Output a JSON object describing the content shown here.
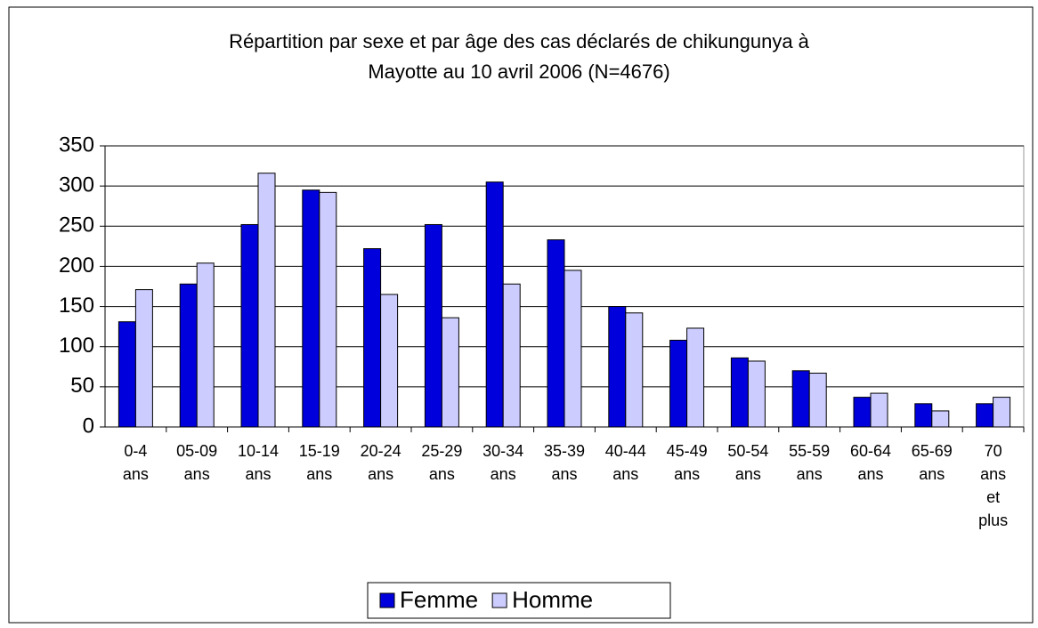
{
  "chart_data": {
    "type": "bar",
    "title": "Répartition par sexe et par âge des cas déclarés de chikungunya à Mayotte au 10 avril 2006 (N=4676)",
    "categories": [
      "0-4 ans",
      "05-09 ans",
      "10-14 ans",
      "15-19 ans",
      "20-24 ans",
      "25-29 ans",
      "30-34 ans",
      "35-39 ans",
      "40-44 ans",
      "45-49 ans",
      "50-54 ans",
      "55-59 ans",
      "60-64 ans",
      "65-69 ans",
      "70 ans et plus"
    ],
    "series": [
      {
        "name": "Femme",
        "color": "#0000dd",
        "values": [
          131,
          178,
          252,
          295,
          222,
          252,
          305,
          233,
          150,
          108,
          86,
          70,
          37,
          29,
          29
        ]
      },
      {
        "name": "Homme",
        "color": "#ccccff",
        "values": [
          171,
          204,
          316,
          292,
          165,
          136,
          178,
          195,
          142,
          123,
          82,
          67,
          42,
          20,
          37
        ]
      }
    ],
    "ylim": [
      0,
      350
    ],
    "yticks": [
      0,
      50,
      100,
      150,
      200,
      250,
      300,
      350
    ],
    "grid": true,
    "legend": "bottom"
  }
}
